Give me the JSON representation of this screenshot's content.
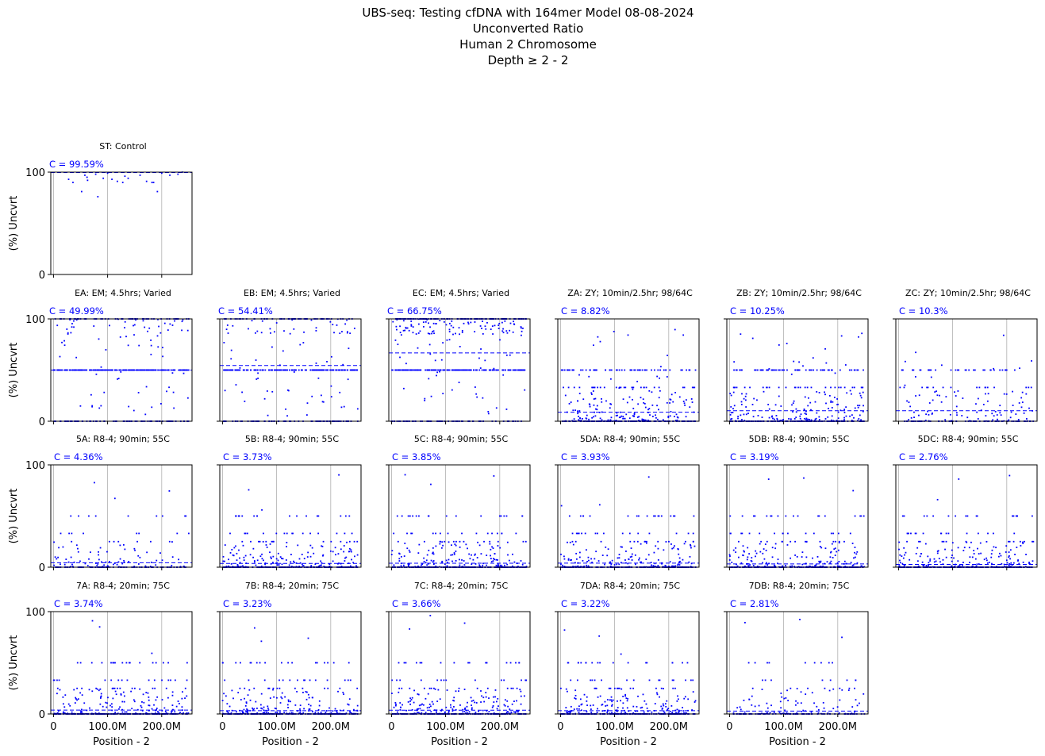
{
  "figure": {
    "title_lines": [
      "UBS-seq: Testing cfDNA with 164mer Model 08-08-2024",
      "Unconverted Ratio",
      "Human 2 Chromosome",
      "Depth ≥ 2 - 2"
    ],
    "ylabel": "(%) Uncvrt",
    "xlabel": "Position - 2",
    "x_tick_labels": [
      "0",
      "100.0M",
      "200.0M"
    ],
    "y_tick_labels": [
      "0",
      "100"
    ],
    "colors": {
      "points": "#0000ff",
      "mean_line": "#0000ff",
      "grid": "#b0b0b0",
      "annotation": "#0000ff"
    }
  },
  "chart_data": [
    {
      "type": "scatter",
      "title": "ST: Control",
      "annotation": "C = 99.59%",
      "mean": 99.59,
      "row": 0,
      "col": 0,
      "pattern": "control",
      "ylim": [
        0,
        100
      ],
      "xlim_mb": [
        -5,
        256
      ],
      "xticks_mb": [
        0,
        100,
        200
      ],
      "grid": "x",
      "series": [
        {
          "points": [
            [
              28,
              93
            ],
            [
              36,
              90
            ],
            [
              52,
              81
            ],
            [
              58,
              97
            ],
            [
              62,
              95
            ],
            [
              63,
              92
            ],
            [
              78,
              98
            ],
            [
              82,
              76
            ],
            [
              92,
              94
            ],
            [
              100,
              99
            ],
            [
              108,
              93
            ],
            [
              118,
              91
            ],
            [
              128,
              90
            ],
            [
              132,
              96
            ],
            [
              138,
              94
            ],
            [
              160,
              97
            ],
            [
              172,
              91
            ],
            [
              182,
              90
            ],
            [
              185,
              90
            ],
            [
              192,
              81
            ],
            [
              200,
              99
            ],
            [
              215,
              97
            ],
            [
              230,
              98
            ],
            [
              238,
              100
            ]
          ]
        }
      ]
    },
    {
      "type": "scatter",
      "title": "EA: EM; 4.5hrs; Varied",
      "annotation": "C = 49.99%",
      "mean": 49.99,
      "row": 1,
      "col": 0,
      "pattern": "em",
      "ylim": [
        0,
        100
      ],
      "xlim_mb": [
        -5,
        256
      ],
      "xticks_mb": [
        0,
        100,
        200
      ],
      "grid": "x"
    },
    {
      "type": "scatter",
      "title": "EB: EM; 4.5hrs; Varied",
      "annotation": "C = 54.41%",
      "mean": 54.41,
      "row": 1,
      "col": 1,
      "pattern": "em",
      "ylim": [
        0,
        100
      ],
      "xlim_mb": [
        -5,
        256
      ],
      "xticks_mb": [
        0,
        100,
        200
      ],
      "grid": "x"
    },
    {
      "type": "scatter",
      "title": "EC: EM; 4.5hrs; Varied",
      "annotation": "C = 66.75%",
      "mean": 66.75,
      "row": 1,
      "col": 2,
      "pattern": "em_high",
      "ylim": [
        0,
        100
      ],
      "xlim_mb": [
        -5,
        256
      ],
      "xticks_mb": [
        0,
        100,
        200
      ],
      "grid": "x"
    },
    {
      "type": "scatter",
      "title": "ZA: ZY; 10min/2.5hr; 98/64C",
      "annotation": "C = 8.82%",
      "mean": 8.82,
      "row": 1,
      "col": 3,
      "pattern": "zy",
      "ylim": [
        0,
        100
      ],
      "xlim_mb": [
        -5,
        256
      ],
      "xticks_mb": [
        0,
        100,
        200
      ],
      "grid": "x"
    },
    {
      "type": "scatter",
      "title": "ZB: ZY; 10min/2.5hr; 98/64C",
      "annotation": "C = 10.25%",
      "mean": 10.25,
      "row": 1,
      "col": 4,
      "pattern": "zy",
      "ylim": [
        0,
        100
      ],
      "xlim_mb": [
        -5,
        256
      ],
      "xticks_mb": [
        0,
        100,
        200
      ],
      "grid": "x"
    },
    {
      "type": "scatter",
      "title": "ZC: ZY; 10min/2.5hr; 98/64C",
      "annotation": "C = 10.3%",
      "mean": 10.3,
      "row": 1,
      "col": 5,
      "pattern": "zy_sparse",
      "ylim": [
        0,
        100
      ],
      "xlim_mb": [
        -5,
        256
      ],
      "xticks_mb": [
        0,
        100,
        200
      ],
      "grid": "x"
    },
    {
      "type": "scatter",
      "title": "5A: R8-4; 90min; 55C",
      "annotation": "C = 4.36%",
      "mean": 4.36,
      "row": 2,
      "col": 0,
      "pattern": "low_sparse",
      "ylim": [
        0,
        100
      ],
      "xlim_mb": [
        -5,
        256
      ],
      "xticks_mb": [
        0,
        100,
        200
      ],
      "grid": "x"
    },
    {
      "type": "scatter",
      "title": "5B: R8-4; 90min; 55C",
      "annotation": "C = 3.73%",
      "mean": 3.73,
      "row": 2,
      "col": 1,
      "pattern": "low",
      "ylim": [
        0,
        100
      ],
      "xlim_mb": [
        -5,
        256
      ],
      "xticks_mb": [
        0,
        100,
        200
      ],
      "grid": "x"
    },
    {
      "type": "scatter",
      "title": "5C: R8-4; 90min; 55C",
      "annotation": "C = 3.85%",
      "mean": 3.85,
      "row": 2,
      "col": 2,
      "pattern": "low",
      "ylim": [
        0,
        100
      ],
      "xlim_mb": [
        -5,
        256
      ],
      "xticks_mb": [
        0,
        100,
        200
      ],
      "grid": "x"
    },
    {
      "type": "scatter",
      "title": "5DA: R8-4; 90min; 55C",
      "annotation": "C = 3.93%",
      "mean": 3.93,
      "row": 2,
      "col": 3,
      "pattern": "low",
      "ylim": [
        0,
        100
      ],
      "xlim_mb": [
        -5,
        256
      ],
      "xticks_mb": [
        0,
        100,
        200
      ],
      "grid": "x"
    },
    {
      "type": "scatter",
      "title": "5DB: R8-4; 90min; 55C",
      "annotation": "C = 3.19%",
      "mean": 3.19,
      "row": 2,
      "col": 4,
      "pattern": "low",
      "ylim": [
        0,
        100
      ],
      "xlim_mb": [
        -5,
        256
      ],
      "xticks_mb": [
        0,
        100,
        200
      ],
      "grid": "x"
    },
    {
      "type": "scatter",
      "title": "5DC: R8-4; 90min; 55C",
      "annotation": "C = 2.76%",
      "mean": 2.76,
      "row": 2,
      "col": 5,
      "pattern": "low",
      "ylim": [
        0,
        100
      ],
      "xlim_mb": [
        -5,
        256
      ],
      "xticks_mb": [
        0,
        100,
        200
      ],
      "grid": "x"
    },
    {
      "type": "scatter",
      "title": "7A: R8-4; 20min; 75C",
      "annotation": "C = 3.74%",
      "mean": 3.74,
      "row": 3,
      "col": 0,
      "pattern": "low",
      "ylim": [
        0,
        100
      ],
      "xlim_mb": [
        -5,
        256
      ],
      "xticks_mb": [
        0,
        100,
        200
      ],
      "grid": "x",
      "xlabel": "Position - 2"
    },
    {
      "type": "scatter",
      "title": "7B: R8-4; 20min; 75C",
      "annotation": "C = 3.23%",
      "mean": 3.23,
      "row": 3,
      "col": 1,
      "pattern": "low",
      "ylim": [
        0,
        100
      ],
      "xlim_mb": [
        -5,
        256
      ],
      "xticks_mb": [
        0,
        100,
        200
      ],
      "grid": "x",
      "xlabel": "Position - 2"
    },
    {
      "type": "scatter",
      "title": "7C: R8-4; 20min; 75C",
      "annotation": "C = 3.66%",
      "mean": 3.66,
      "row": 3,
      "col": 2,
      "pattern": "low",
      "ylim": [
        0,
        100
      ],
      "xlim_mb": [
        -5,
        256
      ],
      "xticks_mb": [
        0,
        100,
        200
      ],
      "grid": "x",
      "xlabel": "Position - 2"
    },
    {
      "type": "scatter",
      "title": "7DA: R8-4; 20min; 75C",
      "annotation": "C = 3.22%",
      "mean": 3.22,
      "row": 3,
      "col": 3,
      "pattern": "low",
      "ylim": [
        0,
        100
      ],
      "xlim_mb": [
        -5,
        256
      ],
      "xticks_mb": [
        0,
        100,
        200
      ],
      "grid": "x",
      "xlabel": "Position - 2"
    },
    {
      "type": "scatter",
      "title": "7DB: R8-4; 20min; 75C",
      "annotation": "C = 2.81%",
      "mean": 2.81,
      "row": 3,
      "col": 4,
      "pattern": "low_sparse",
      "ylim": [
        0,
        100
      ],
      "xlim_mb": [
        -5,
        256
      ],
      "xticks_mb": [
        0,
        100,
        200
      ],
      "grid": "x",
      "xlabel": "Position - 2"
    }
  ]
}
